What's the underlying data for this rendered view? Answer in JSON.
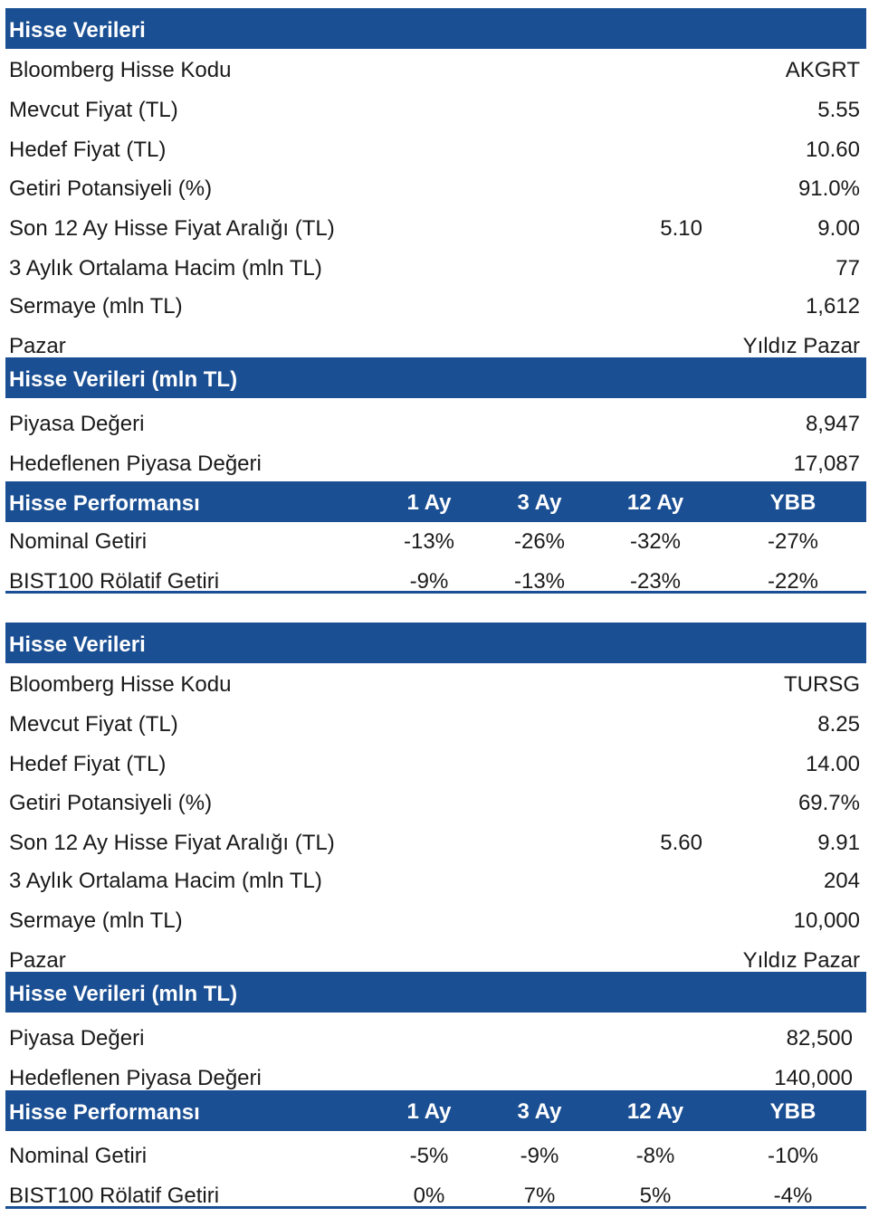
{
  "blocks": [
    {
      "stock_header": "Hisse Verileri",
      "stock_rows": [
        {
          "label": "Bloomberg Hisse Kodu",
          "value": "AKGRT"
        },
        {
          "label": "Mevcut Fiyat (TL)",
          "value": "5.55"
        },
        {
          "label": "Hedef Fiyat (TL)",
          "value": "10.60"
        },
        {
          "label": "Getiri Potansiyeli (%)",
          "value": "91.0%"
        },
        {
          "label": "Son 12 Ay Hisse Fiyat Aralığı (TL)",
          "low": "5.10",
          "value": "9.00"
        },
        {
          "label": "3 Aylık Ortalama Hacim (mln TL)",
          "value": "77"
        },
        {
          "label": "Sermaye (mln TL)",
          "value": "1,612"
        },
        {
          "label": "Pazar",
          "value": "Yıldız Pazar"
        }
      ],
      "market_header": "Hisse Verileri (mln TL)",
      "market_rows": [
        {
          "label": "Piyasa Değeri",
          "value": "8,947"
        },
        {
          "label": "Hedeflenen Piyasa Değeri",
          "value": "17,087"
        }
      ],
      "perf_header": {
        "title": "Hisse Performansı",
        "cols": [
          "1 Ay",
          "3 Ay",
          "12 Ay",
          "YBB"
        ]
      },
      "perf_rows": [
        {
          "label": "Nominal Getiri",
          "values": [
            "-13%",
            "-26%",
            "-32%",
            "-27%"
          ]
        },
        {
          "label": "BIST100 Rölatif Getiri",
          "values": [
            "-9%",
            "-13%",
            "-23%",
            "-22%"
          ]
        }
      ]
    },
    {
      "stock_header": "Hisse Verileri",
      "stock_rows": [
        {
          "label": "Bloomberg Hisse Kodu",
          "value": "TURSG"
        },
        {
          "label": "Mevcut Fiyat (TL)",
          "value": "8.25"
        },
        {
          "label": "Hedef Fiyat (TL)",
          "value": "14.00"
        },
        {
          "label": "Getiri Potansiyeli (%)",
          "value": "69.7%"
        },
        {
          "label": "Son 12 Ay Hisse Fiyat Aralığı (TL)",
          "low": "5.60",
          "value": "9.91"
        },
        {
          "label": "3 Aylık Ortalama Hacim (mln TL)",
          "value": "204"
        },
        {
          "label": "Sermaye (mln TL)",
          "value": "10,000"
        },
        {
          "label": "Pazar",
          "value": "Yıldız Pazar"
        }
      ],
      "market_header": "Hisse Verileri (mln TL)",
      "market_rows": [
        {
          "label": "Piyasa Değeri",
          "value": "82,500"
        },
        {
          "label": "Hedeflenen Piyasa Değeri",
          "value": "140,000"
        }
      ],
      "perf_header": {
        "title": "Hisse Performansı",
        "cols": [
          "1 Ay",
          "3 Ay",
          "12 Ay",
          "YBB"
        ]
      },
      "perf_rows": [
        {
          "label": "Nominal Getiri",
          "values": [
            "-5%",
            "-9%",
            "-8%",
            "-10%"
          ]
        },
        {
          "label": "BIST100 Rölatif Getiri",
          "values": [
            "0%",
            "7%",
            "5%",
            "-4%"
          ]
        }
      ]
    }
  ]
}
